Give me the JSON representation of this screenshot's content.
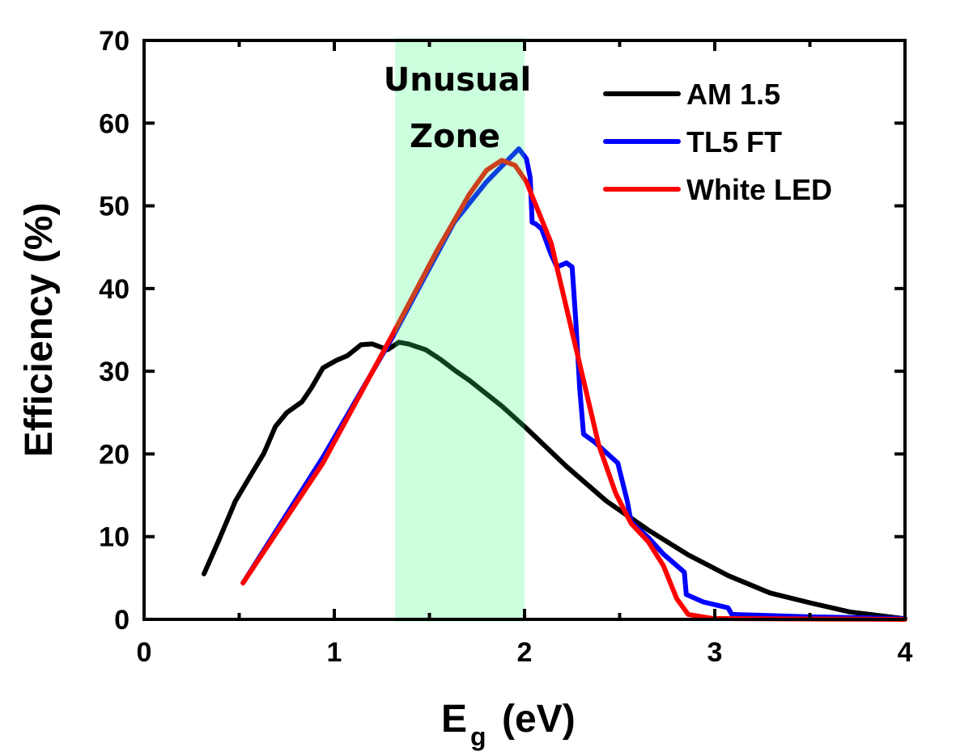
{
  "chart_data": {
    "type": "line",
    "title": "",
    "xlabel": "E",
    "xlabel_subscript": "g",
    "xlabel_unit": "(eV)",
    "ylabel": "Efficiency (%)",
    "xlim": [
      0,
      4
    ],
    "ylim": [
      0,
      70
    ],
    "xticks": [
      0,
      1,
      2,
      3,
      4
    ],
    "xtick_labels": [
      "0",
      "1",
      "2",
      "3",
      "4"
    ],
    "x_minor_ticks": [
      0.5,
      1.5,
      2.5,
      3.5
    ],
    "yticks": [
      0,
      10,
      20,
      30,
      40,
      50,
      60,
      70
    ],
    "ytick_labels": [
      "0",
      "10",
      "20",
      "30",
      "40",
      "50",
      "60",
      "70"
    ],
    "grid": false,
    "legend_position": "top-right",
    "highlight_band": {
      "x_range": [
        1.32,
        2.0
      ],
      "label_lines": [
        "Unusual",
        "Zone"
      ],
      "color": "#ccffdd",
      "text_color": "#1f4d2e"
    },
    "series": [
      {
        "name": "AM 1.5",
        "color": "#000000",
        "points": [
          [
            0.315,
            5.5
          ],
          [
            0.39,
            9.4
          ],
          [
            0.48,
            14.3
          ],
          [
            0.56,
            17.4
          ],
          [
            0.63,
            20.1
          ],
          [
            0.69,
            23.3
          ],
          [
            0.75,
            25.0
          ],
          [
            0.83,
            26.3
          ],
          [
            0.88,
            28.0
          ],
          [
            0.94,
            30.4
          ],
          [
            1.01,
            31.3
          ],
          [
            1.07,
            31.9
          ],
          [
            1.14,
            33.2
          ],
          [
            1.2,
            33.3
          ],
          [
            1.28,
            32.6
          ],
          [
            1.34,
            33.5
          ],
          [
            1.39,
            33.3
          ],
          [
            1.48,
            32.6
          ],
          [
            1.56,
            31.4
          ],
          [
            1.64,
            30.0
          ],
          [
            1.71,
            28.9
          ],
          [
            1.88,
            25.8
          ],
          [
            2.01,
            23.1
          ],
          [
            2.22,
            18.5
          ],
          [
            2.43,
            14.3
          ],
          [
            2.65,
            10.8
          ],
          [
            2.86,
            7.8
          ],
          [
            3.07,
            5.3
          ],
          [
            3.29,
            3.2
          ],
          [
            3.5,
            2.0
          ],
          [
            3.71,
            0.9
          ],
          [
            3.99,
            0.1
          ]
        ]
      },
      {
        "name": "TL5 FT",
        "color": "#0000ff",
        "points": [
          [
            0.52,
            4.4
          ],
          [
            0.94,
            19.6
          ],
          [
            1.31,
            34.3
          ],
          [
            1.63,
            48.0
          ],
          [
            1.8,
            52.9
          ],
          [
            1.97,
            56.9
          ],
          [
            2.01,
            55.7
          ],
          [
            2.03,
            53.4
          ],
          [
            2.04,
            48.0
          ],
          [
            2.06,
            47.8
          ],
          [
            2.09,
            47.2
          ],
          [
            2.14,
            44.1
          ],
          [
            2.17,
            42.6
          ],
          [
            2.22,
            43.1
          ],
          [
            2.25,
            42.6
          ],
          [
            2.27,
            35.8
          ],
          [
            2.29,
            28.0
          ],
          [
            2.31,
            22.4
          ],
          [
            2.37,
            21.4
          ],
          [
            2.49,
            18.9
          ],
          [
            2.54,
            14.3
          ],
          [
            2.56,
            11.8
          ],
          [
            2.65,
            9.9
          ],
          [
            2.73,
            7.9
          ],
          [
            2.84,
            5.7
          ],
          [
            2.85,
            3.0
          ],
          [
            2.94,
            2.1
          ],
          [
            3.07,
            1.4
          ],
          [
            3.09,
            0.6
          ],
          [
            3.5,
            0.3
          ],
          [
            4.0,
            0.1
          ]
        ]
      },
      {
        "name": "White LED",
        "color": "#ff0000",
        "points": [
          [
            0.52,
            4.4
          ],
          [
            0.94,
            18.9
          ],
          [
            1.31,
            34.6
          ],
          [
            1.54,
            44.6
          ],
          [
            1.71,
            51.4
          ],
          [
            1.8,
            54.3
          ],
          [
            1.88,
            55.5
          ],
          [
            1.95,
            54.9
          ],
          [
            2.01,
            52.9
          ],
          [
            2.14,
            45.5
          ],
          [
            2.22,
            37.7
          ],
          [
            2.31,
            28.9
          ],
          [
            2.39,
            21.1
          ],
          [
            2.48,
            15.2
          ],
          [
            2.56,
            11.6
          ],
          [
            2.65,
            9.4
          ],
          [
            2.73,
            6.5
          ],
          [
            2.8,
            2.5
          ],
          [
            2.86,
            0.6
          ],
          [
            2.99,
            0.1
          ],
          [
            4.0,
            0.0
          ]
        ]
      }
    ]
  }
}
